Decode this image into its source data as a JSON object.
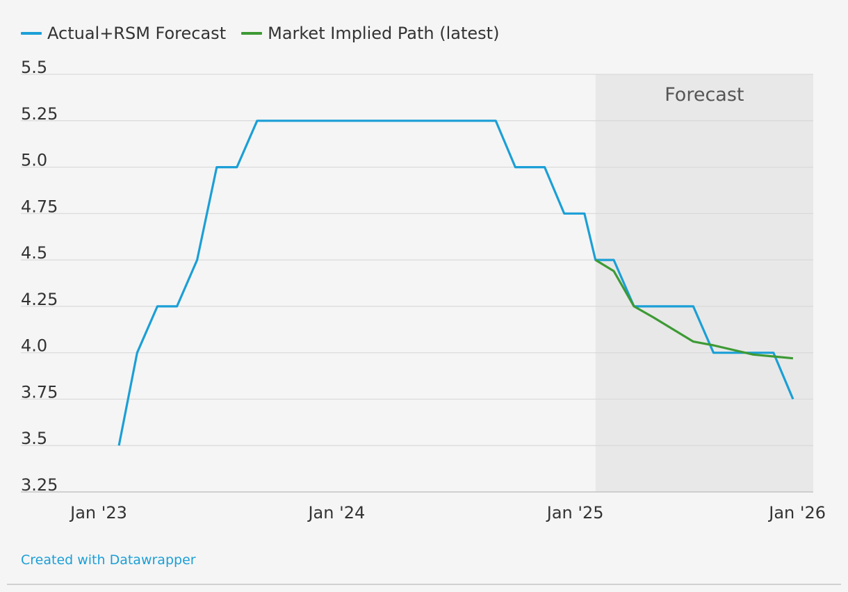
{
  "legend": [
    {
      "label": "Actual+RSM Forecast",
      "color": "#1b9fd6"
    },
    {
      "label": "Market Implied Path (latest)",
      "color": "#3d9a34"
    }
  ],
  "footer": {
    "credit": "Created with Datawrapper"
  },
  "chart_data": {
    "type": "line",
    "title": "",
    "xlabel": "",
    "ylabel": "",
    "ylim": [
      3.25,
      5.5
    ],
    "xlim": [
      "2023-01-01",
      "2026-01-01"
    ],
    "grid": true,
    "legend_position": "top-left",
    "y_ticks": [
      "3.25",
      "3.5",
      "3.75",
      "4.0",
      "4.25",
      "4.5",
      "4.75",
      "5.0",
      "5.25",
      "5.5"
    ],
    "x_ticks": [
      {
        "date": "2023-01-01",
        "label": "Jan '23"
      },
      {
        "date": "2024-01-01",
        "label": "Jan '24"
      },
      {
        "date": "2025-01-01",
        "label": "Jan '25"
      },
      {
        "date": "2026-01-01",
        "label": "Jan '26"
      }
    ],
    "shaded_region": {
      "start": "2025-02-01",
      "end": "2026-01-01",
      "label": "Forecast"
    },
    "series": [
      {
        "name": "Actual+RSM Forecast",
        "color": "#1b9fd6",
        "points": [
          [
            "2023-02-01",
            3.5
          ],
          [
            "2023-03-01",
            4.0
          ],
          [
            "2023-04-01",
            4.25
          ],
          [
            "2023-05-01",
            4.25
          ],
          [
            "2023-06-01",
            4.5
          ],
          [
            "2023-07-01",
            5.0
          ],
          [
            "2023-08-01",
            5.0
          ],
          [
            "2023-09-01",
            5.25
          ],
          [
            "2024-09-01",
            5.25
          ],
          [
            "2024-10-01",
            5.0
          ],
          [
            "2024-11-15",
            5.0
          ],
          [
            "2024-12-15",
            4.75
          ],
          [
            "2025-01-15",
            4.75
          ],
          [
            "2025-02-01",
            4.5
          ],
          [
            "2025-03-01",
            4.5
          ],
          [
            "2025-04-01",
            4.25
          ],
          [
            "2025-07-01",
            4.25
          ],
          [
            "2025-08-01",
            4.0
          ],
          [
            "2025-11-01",
            4.0
          ],
          [
            "2025-12-01",
            3.75
          ]
        ]
      },
      {
        "name": "Market Implied Path (latest)",
        "color": "#3d9a34",
        "points": [
          [
            "2025-02-01",
            4.5
          ],
          [
            "2025-03-01",
            4.44
          ],
          [
            "2025-04-01",
            4.25
          ],
          [
            "2025-05-01",
            4.19
          ],
          [
            "2025-07-01",
            4.06
          ],
          [
            "2025-08-01",
            4.04
          ],
          [
            "2025-10-01",
            3.99
          ],
          [
            "2025-11-01",
            3.98
          ],
          [
            "2025-12-01",
            3.97
          ]
        ]
      }
    ]
  }
}
